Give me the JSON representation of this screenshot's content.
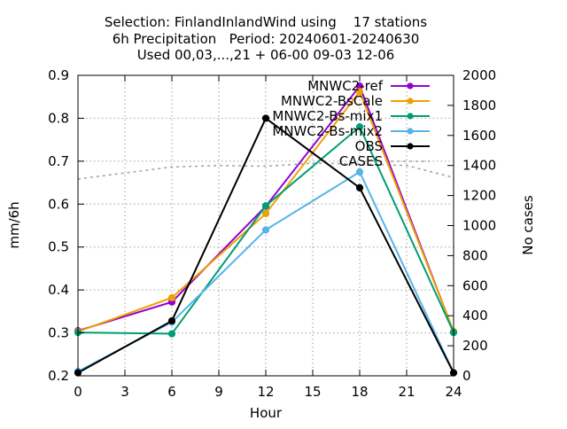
{
  "chart_data": {
    "type": "line",
    "title_lines": [
      "Selection: FinlandInlandWind using    17 stations",
      "6h Precipitation   Period: 20240601-20240630",
      "Used 00,03,...,21 + 06-00 09-03 12-06"
    ],
    "xlabel": "Hour",
    "ylabel": "mm/6h",
    "y2label": "No cases",
    "xlim": [
      0,
      24
    ],
    "ylim": [
      0.2,
      0.9
    ],
    "y2lim": [
      0,
      2000
    ],
    "xticks": [
      0,
      3,
      6,
      9,
      12,
      15,
      18,
      21,
      24
    ],
    "yticks": [
      "0.2",
      "0.3",
      "0.4",
      "0.5",
      "0.6",
      "0.7",
      "0.8",
      "0.9"
    ],
    "y2ticks": [
      "0",
      "200",
      "400",
      "600",
      "800",
      "1000",
      "1200",
      "1400",
      "1600",
      "1800",
      "2000"
    ],
    "grid": true,
    "legend_position": "top-right",
    "x": [
      0,
      6,
      12,
      18,
      24
    ],
    "series": [
      {
        "name": "MNWC2-ref",
        "color": "#9400d3",
        "marker": "filled-circle",
        "values": [
          0.305,
          0.372,
          0.595,
          0.875,
          0.302
        ]
      },
      {
        "name": "MNWC2-BsCale",
        "color": "#f0a000",
        "marker": "filled-circle",
        "values": [
          0.303,
          0.382,
          0.578,
          0.862,
          0.303
        ]
      },
      {
        "name": "MNWC2-Bs-mix1",
        "color": "#009e73",
        "marker": "filled-circle",
        "values": [
          0.301,
          0.298,
          0.596,
          0.78,
          0.301
        ]
      },
      {
        "name": "MNWC2-Bs-mix2",
        "color": "#56b4e9",
        "marker": "filled-circle",
        "values": [
          0.21,
          0.325,
          0.54,
          0.675,
          0.207
        ]
      },
      {
        "name": "OBS",
        "color": "#000000",
        "marker": "filled-circle",
        "values": [
          0.207,
          0.328,
          0.8,
          0.638,
          0.207
        ]
      }
    ],
    "cases": {
      "name": "CASES",
      "axis": "right",
      "color": "#a0a0a0",
      "style": "dotted",
      "x": [
        0,
        3,
        6,
        9,
        12,
        15,
        18,
        21,
        24
      ],
      "values": [
        1310,
        1350,
        1390,
        1400,
        1395,
        1415,
        1410,
        1400,
        1320
      ]
    }
  }
}
